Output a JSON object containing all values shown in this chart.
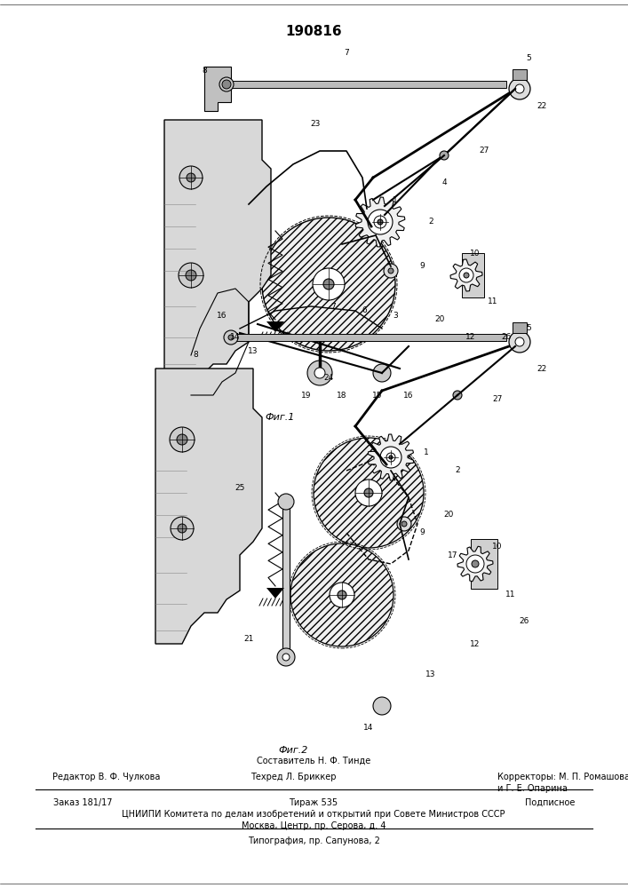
{
  "patent_number": "190816",
  "fig1_caption": "Фиг.1",
  "fig2_caption": "Фиг.2",
  "author_line": "Составитель Н. Ф. Тинде",
  "editor_label": "Редактор В. Ф. Чулкова",
  "techred_label": "Техред Л. Бриккер",
  "correctors_label": "Корректоры: М. П. Ромашова",
  "corrector2": "и Г. Е. Опарина",
  "order_label": "Заказ 181/17",
  "tirazh_label": "Тираж 535",
  "podpisnoe_label": "Подписное",
  "cniip_line": "ЦНИИПИ Комитета по делам изобретений и открытий при Совете Министров СССР",
  "moscow_line": "Москва, Центр, пр. Серова, д. 4",
  "tipografiya_line": "Типография, пр. Сапунова, 2",
  "bg_color": "#ffffff",
  "text_color": "#000000"
}
